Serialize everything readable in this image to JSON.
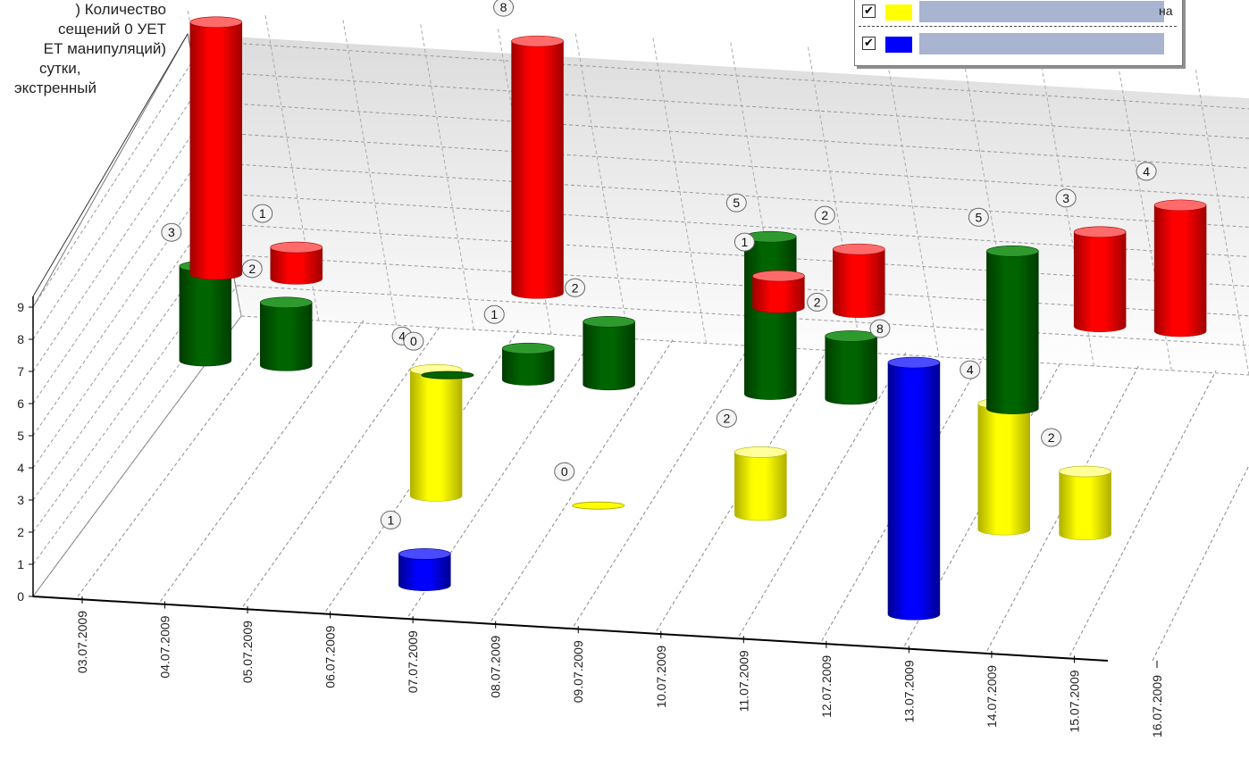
{
  "title_lines": [
    ") Количество",
    "сещений 0 УЕТ",
    "ЕТ манипуляций)",
    "сутки,",
    "экстренный"
  ],
  "legend": {
    "items": [
      {
        "color": "#ffff00",
        "checked": "✔",
        "text": "на"
      },
      {
        "color": "#0000ff",
        "checked": "✔",
        "text": ""
      }
    ]
  },
  "chart_data": {
    "type": "bar",
    "subtype": "3d-cylinder",
    "categories": [
      "03.07.2009",
      "04.07.2009",
      "05.07.2009",
      "06.07.2009",
      "07.07.2009",
      "08.07.2009",
      "09.07.2009",
      "10.07.2009",
      "11.07.2009",
      "12.07.2009",
      "13.07.2009",
      "14.07.2009",
      "15.07.2009",
      "16.07.2009"
    ],
    "y_ticks": [
      0,
      1,
      2,
      3,
      4,
      5,
      6,
      7,
      8,
      9
    ],
    "ylim": [
      0,
      9
    ],
    "grid": true,
    "series": [
      {
        "color": "#ff0000",
        "values": [
          null,
          8,
          1,
          null,
          null,
          8,
          null,
          null,
          1,
          2,
          null,
          null,
          3,
          4
        ]
      },
      {
        "color": "#006400",
        "values": [
          null,
          3,
          2,
          null,
          0,
          1,
          2,
          null,
          5,
          2,
          null,
          5,
          null,
          null
        ]
      },
      {
        "color": "#ffff00",
        "values": [
          null,
          null,
          null,
          null,
          4,
          null,
          0,
          null,
          2,
          null,
          null,
          4,
          2,
          null
        ]
      },
      {
        "color": "#0000ff",
        "values": [
          null,
          null,
          null,
          null,
          1,
          null,
          null,
          null,
          null,
          null,
          8,
          null,
          null,
          null
        ]
      }
    ],
    "bars": [
      {
        "series": 0,
        "category": "04.07.2009",
        "value": 8
      },
      {
        "series": 0,
        "category": "05.07.2009",
        "value": 1
      },
      {
        "series": 0,
        "category": "08.07.2009",
        "value": 8
      },
      {
        "series": 0,
        "category": "11.07.2009",
        "value": 1
      },
      {
        "series": 0,
        "category": "12.07.2009",
        "value": 2
      },
      {
        "series": 0,
        "category": "15.07.2009",
        "value": 3
      },
      {
        "series": 0,
        "category": "16.07.2009",
        "value": 4
      },
      {
        "series": 1,
        "category": "04.07.2009",
        "value": 3
      },
      {
        "series": 1,
        "category": "05.07.2009",
        "value": 2
      },
      {
        "series": 1,
        "category": "07.07.2009",
        "value": 0
      },
      {
        "series": 1,
        "category": "08.07.2009",
        "value": 1
      },
      {
        "series": 1,
        "category": "09.07.2009",
        "value": 2
      },
      {
        "series": 1,
        "category": "11.07.2009",
        "value": 5
      },
      {
        "series": 1,
        "category": "12.07.2009",
        "value": 2
      },
      {
        "series": 1,
        "category": "14.07.2009",
        "value": 5
      },
      {
        "series": 2,
        "category": "07.07.2009",
        "value": 4
      },
      {
        "series": 2,
        "category": "09.07.2009",
        "value": 0
      },
      {
        "series": 2,
        "category": "11.07.2009",
        "value": 2
      },
      {
        "series": 2,
        "category": "14.07.2009",
        "value": 4
      },
      {
        "series": 2,
        "category": "15.07.2009",
        "value": 2
      },
      {
        "series": 3,
        "category": "07.07.2009",
        "value": 1
      },
      {
        "series": 3,
        "category": "13.07.2009",
        "value": 8
      }
    ]
  }
}
